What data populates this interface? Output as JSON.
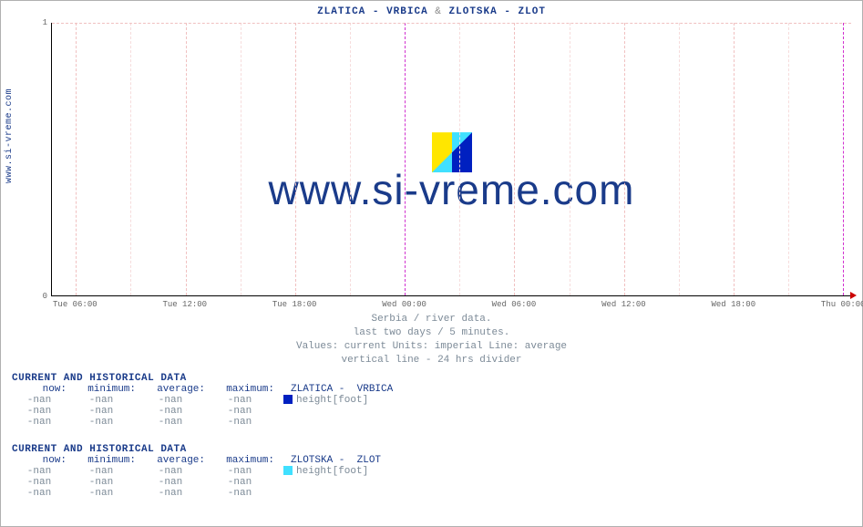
{
  "sidelabel": "www.si-vreme.com",
  "title_a": "ZLATICA -  VRBICA",
  "title_amp": "&",
  "title_b": "ZLOTSKA -  ZLOT",
  "watermark": "www.si-vreme.com",
  "subcaption": {
    "l1": "Serbia / river data.",
    "l2": "last two days / 5 minutes.",
    "l3": "Values: current  Units: imperial  Line: average",
    "l4": "vertical line - 24 hrs  divider"
  },
  "chart": {
    "type": "line",
    "ylim": [
      0,
      1
    ],
    "yticks": [
      0,
      1
    ],
    "xticks": [
      "Tue 06:00",
      "Tue 12:00",
      "Tue 18:00",
      "Wed 00:00",
      "Wed 06:00",
      "Wed 12:00",
      "Wed 18:00",
      "Thu 00:00"
    ],
    "grid_color": "#f0c0c0",
    "minor_grid_color": "#f6dcdc",
    "divider_color": "#d030d0",
    "axis_color": "#000000",
    "background_color": "#ffffff",
    "font_family": "Courier New",
    "title_fontsize": 11,
    "watermark_fontsize": 46,
    "logo_colors": {
      "yellow": "#ffe600",
      "blue": "#0020c0",
      "cyan": "#40e0ff"
    }
  },
  "tables": [
    {
      "heading": "CURRENT AND HISTORICAL DATA",
      "columns": [
        "now:",
        "minimum:",
        "average:",
        "maximum:"
      ],
      "series_name": "ZLATICA -  VRBICA",
      "swatch_color": "#0020c0",
      "unit_label": "height[foot]",
      "rows": [
        [
          "-nan",
          "-nan",
          "-nan",
          "-nan"
        ],
        [
          "-nan",
          "-nan",
          "-nan",
          "-nan"
        ],
        [
          "-nan",
          "-nan",
          "-nan",
          "-nan"
        ]
      ]
    },
    {
      "heading": "CURRENT AND HISTORICAL DATA",
      "columns": [
        "now:",
        "minimum:",
        "average:",
        "maximum:"
      ],
      "series_name": "ZLOTSKA -  ZLOT",
      "swatch_color": "#40e0ff",
      "unit_label": "height[foot]",
      "rows": [
        [
          "-nan",
          "-nan",
          "-nan",
          "-nan"
        ],
        [
          "-nan",
          "-nan",
          "-nan",
          "-nan"
        ],
        [
          "-nan",
          "-nan",
          "-nan",
          "-nan"
        ]
      ]
    }
  ]
}
